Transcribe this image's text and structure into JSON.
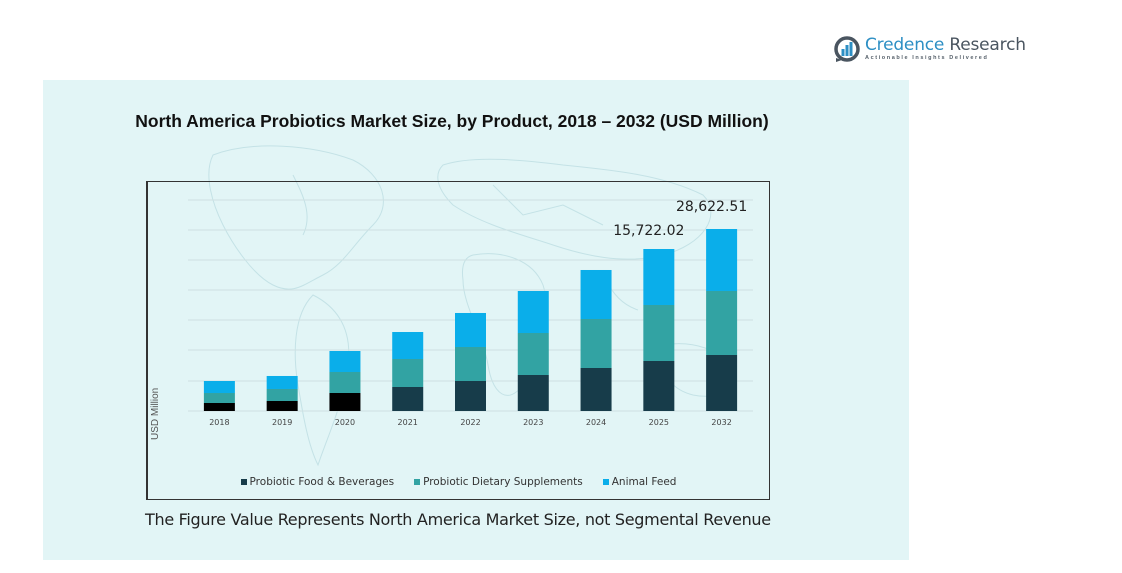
{
  "brand": {
    "name_part1": "Credence",
    "name_part2": "Research",
    "tagline": "Actionable Insights Delivered",
    "color": "#2d8fc4"
  },
  "footnote": "The Figure Value Represents North America Market Size, not Segmental Revenue",
  "colors": {
    "panel_bg": "#e2f5f6",
    "food_beverages": "#173c4a",
    "dietary_supplements": "#32a3a3",
    "animal_feed": "#0aaeea",
    "early_food_beverages": "#000000"
  },
  "chart_data": {
    "type": "bar",
    "stacked": true,
    "title": "North America Probiotics Market Size, by Product, 2018 – 2032 (USD Million)",
    "xlabel": "",
    "ylabel": "USD Million",
    "grid": true,
    "legend_position": "bottom",
    "categories": [
      "2018",
      "2019",
      "2020",
      "2021",
      "2022",
      "2023",
      "2024",
      "2025",
      "2032"
    ],
    "series": [
      {
        "name": "Probiotic Food & Beverages",
        "color_key": "food_beverages",
        "values": [
          776,
          971,
          1747,
          2329,
          2912,
          3494,
          4173,
          4853,
          8808
        ]
      },
      {
        "name": "Probiotic Dietary Supplements",
        "color_key": "dietary_supplements",
        "values": [
          970,
          1165,
          2038,
          2717,
          3300,
          4076,
          4756,
          5435,
          10066
        ]
      },
      {
        "name": "Animal Feed",
        "color_key": "animal_feed",
        "values": [
          1165,
          1262,
          2038,
          2620,
          3300,
          4076,
          4756,
          5434.02,
          9748.51
        ]
      }
    ],
    "totals": [
      2911,
      3398,
      5823,
      7666,
      9512,
      11646,
      13685,
      15722.02,
      28622.51
    ],
    "data_labels": [
      {
        "category": "2025",
        "text": "15,722.02"
      },
      {
        "category": "2032",
        "text": "28,622.51"
      }
    ]
  }
}
